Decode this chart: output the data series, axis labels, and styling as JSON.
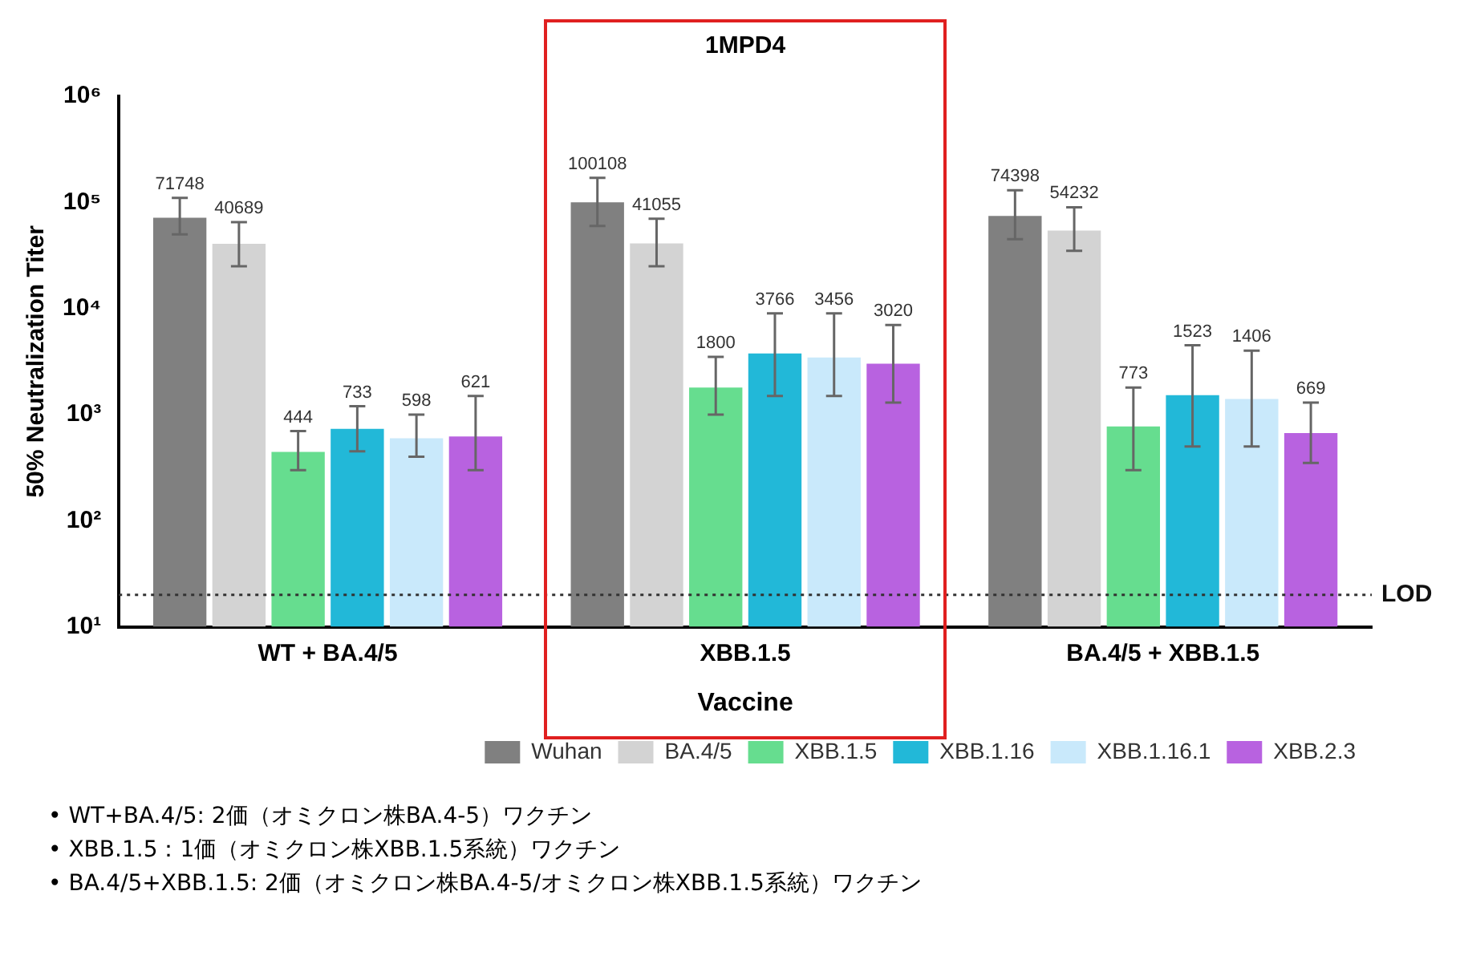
{
  "chart_data": {
    "type": "bar",
    "ylabel": "50% Neutralization Titer",
    "xlabel": "Vaccine",
    "categories": [
      "WT + BA.4/5",
      "XBB.1.5",
      "BA.4/5 + XBB.1.5"
    ],
    "log": "y",
    "ylim": [
      10,
      1000000
    ],
    "yticks": [
      {
        "value": 10,
        "label": "10¹"
      },
      {
        "value": 100,
        "label": "10²"
      },
      {
        "value": 1000,
        "label": "10³"
      },
      {
        "value": 10000,
        "label": "10⁴"
      },
      {
        "value": 100000,
        "label": "10⁵"
      },
      {
        "value": 1000000,
        "label": "10⁶"
      }
    ],
    "series": [
      {
        "name": "Wuhan",
        "color": "#808080",
        "values": [
          71748,
          100108,
          74398
        ],
        "errors": [
          [
            50000,
            110000
          ],
          [
            60000,
            170000
          ],
          [
            45000,
            130000
          ]
        ]
      },
      {
        "name": "BA.4/5",
        "color": "#d3d3d3",
        "values": [
          40689,
          41055,
          54232
        ],
        "errors": [
          [
            25000,
            65000
          ],
          [
            25000,
            70000
          ],
          [
            35000,
            90000
          ]
        ]
      },
      {
        "name": "XBB.1.5",
        "color": "#66dd8f",
        "values": [
          444,
          1800,
          773
        ],
        "errors": [
          [
            300,
            700
          ],
          [
            1000,
            3500
          ],
          [
            300,
            1800
          ]
        ]
      },
      {
        "name": "XBB.1.16",
        "color": "#22b8d8",
        "values": [
          733,
          3766,
          1523
        ],
        "errors": [
          [
            450,
            1200
          ],
          [
            1500,
            9000
          ],
          [
            500,
            4500
          ]
        ]
      },
      {
        "name": "XBB.1.16.1",
        "color": "#c9e9fb",
        "values": [
          598,
          3456,
          1406
        ],
        "errors": [
          [
            400,
            1000
          ],
          [
            1500,
            9000
          ],
          [
            500,
            4000
          ]
        ]
      },
      {
        "name": "XBB.2.3",
        "color": "#b862e0",
        "values": [
          621,
          3020,
          669
        ],
        "errors": [
          [
            300,
            1500
          ],
          [
            1300,
            7000
          ],
          [
            350,
            1300
          ]
        ]
      }
    ],
    "data_labels": true,
    "ref_lines": [
      {
        "axis": "y",
        "value": 20,
        "label": "LOD",
        "line_style": "dotted"
      }
    ],
    "legend": "bottom right",
    "annotations": [
      "1MPD4",
      "• WT+BA.4/5: 2価（オミクロン株BA.4-5）ワクチン",
      "• XBB.1.5：1価（オミクロン株XBB.1.5系統）ワクチン",
      "• BA.4/5+XBB.1.5: 2価（オミクロン株BA.4-5/オミクロン株XBB.1.5系統）ワクチン"
    ]
  }
}
